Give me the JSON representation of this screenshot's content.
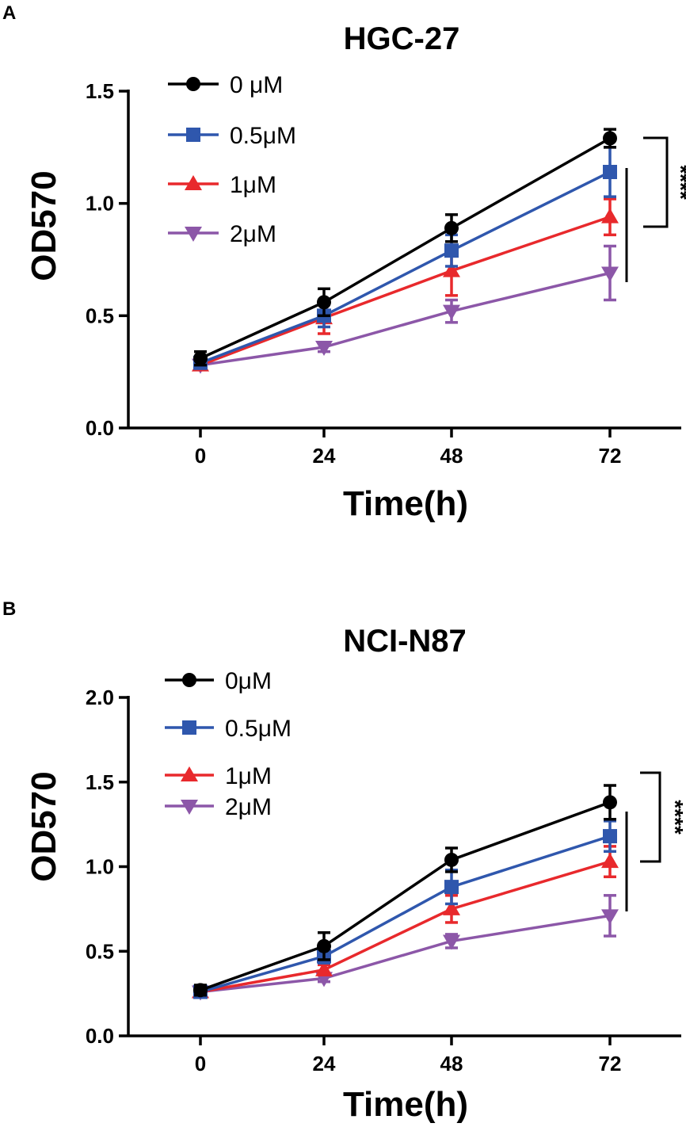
{
  "chart_data": [
    {
      "panel": "A",
      "type": "line",
      "title": "HGC-27",
      "xlabel": "Time(h)",
      "ylabel": "OD570",
      "x": [
        0,
        24,
        48,
        72
      ],
      "xticks": [
        "0",
        "24",
        "48",
        "72"
      ],
      "ylim": [
        0,
        1.5
      ],
      "yticks": [
        "0.0",
        "0.5",
        "1.0",
        "1.5"
      ],
      "ytick_values": [
        0,
        0.5,
        1.0,
        1.5
      ],
      "series": [
        {
          "name": "0 μM",
          "color": "#000000",
          "marker": "circle",
          "values": [
            0.31,
            0.56,
            0.89,
            1.29
          ],
          "errors": [
            0.03,
            0.06,
            0.06,
            0.04
          ]
        },
        {
          "name": "0.5μM",
          "color": "#2f57ad",
          "marker": "square",
          "values": [
            0.29,
            0.5,
            0.79,
            1.14
          ],
          "errors": [
            0.02,
            0.05,
            0.07,
            0.11
          ]
        },
        {
          "name": "1μM",
          "color": "#e8292c",
          "marker": "triangle-up",
          "values": [
            0.28,
            0.49,
            0.7,
            0.94
          ],
          "errors": [
            0.02,
            0.07,
            0.11,
            0.08
          ]
        },
        {
          "name": "2μM",
          "color": "#8c57a8",
          "marker": "triangle-down",
          "values": [
            0.28,
            0.36,
            0.52,
            0.69
          ],
          "errors": [
            0.02,
            0.02,
            0.05,
            0.12
          ]
        }
      ],
      "significance": "****"
    },
    {
      "panel": "B",
      "type": "line",
      "title": "NCI-N87",
      "xlabel": "Time(h)",
      "ylabel": "OD570",
      "x": [
        0,
        24,
        48,
        72
      ],
      "xticks": [
        "0",
        "24",
        "48",
        "72"
      ],
      "ylim": [
        0,
        2.0
      ],
      "yticks": [
        "0.0",
        "0.5",
        "1.0",
        "1.5",
        "2.0"
      ],
      "ytick_values": [
        0,
        0.5,
        1.0,
        1.5,
        2.0
      ],
      "series": [
        {
          "name": "0μM",
          "color": "#000000",
          "marker": "circle",
          "values": [
            0.27,
            0.53,
            1.04,
            1.38
          ],
          "errors": [
            0.03,
            0.08,
            0.07,
            0.1
          ]
        },
        {
          "name": "0.5μM",
          "color": "#2f57ad",
          "marker": "square",
          "values": [
            0.26,
            0.47,
            0.88,
            1.18
          ],
          "errors": [
            0.02,
            0.04,
            0.1,
            0.09
          ]
        },
        {
          "name": "1μM",
          "color": "#e8292c",
          "marker": "triangle-up",
          "values": [
            0.26,
            0.39,
            0.75,
            1.03
          ],
          "errors": [
            0.02,
            0.03,
            0.08,
            0.09
          ]
        },
        {
          "name": "2μM",
          "color": "#8c57a8",
          "marker": "triangle-down",
          "values": [
            0.26,
            0.34,
            0.56,
            0.71
          ],
          "errors": [
            0.02,
            0.02,
            0.04,
            0.12
          ]
        }
      ],
      "significance": "****"
    }
  ]
}
